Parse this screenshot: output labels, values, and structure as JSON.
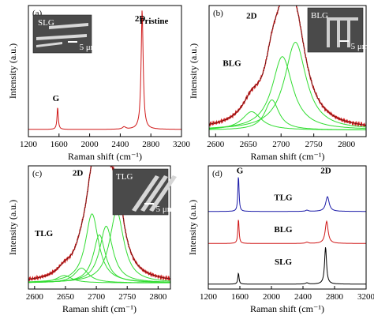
{
  "panels": [
    {
      "id": "a",
      "letter": "(a)",
      "xlabel": "Raman shift (cm⁻¹)",
      "ylabel": "Intensity (a.u.)",
      "inset": {
        "label": "SLG",
        "scale": "5 μm"
      },
      "annotations": [
        {
          "text": "G",
          "x": 1560,
          "y": 0.27
        },
        {
          "text": "2D",
          "x": 2660,
          "y": 0.88
        },
        {
          "text": "Pristine",
          "x": 2840,
          "y": 0.86
        }
      ]
    },
    {
      "id": "b",
      "letter": "(b)",
      "xlabel": "Raman shift (cm⁻¹)",
      "ylabel": "Intensity (a.u.)",
      "inset": {
        "label": "BLG",
        "scale": "5 μm"
      },
      "annotations": [
        {
          "text": "2D",
          "x": 2655,
          "y": 0.9
        },
        {
          "text": "BLG",
          "x": 2625,
          "y": 0.54
        }
      ]
    },
    {
      "id": "c",
      "letter": "(c)",
      "xlabel": "Raman shift (cm⁻¹)",
      "ylabel": "Intensity (a.u.)",
      "inset": {
        "label": "TLG",
        "scale": "5 μm"
      },
      "annotations": [
        {
          "text": "2D",
          "x": 2670,
          "y": 0.92
        },
        {
          "text": "TLG",
          "x": 2615,
          "y": 0.43
        }
      ]
    },
    {
      "id": "d",
      "letter": "(d)",
      "xlabel": "Raman shift (cm⁻¹)",
      "ylabel": "Intensity (a.u.)",
      "annotations": [
        {
          "text": "G",
          "x": 1600,
          "y": 0.94
        },
        {
          "text": "2D",
          "x": 2690,
          "y": 0.94
        },
        {
          "text": "TLG",
          "x": 2150,
          "y": 0.72,
          "color": "#1a1aa8"
        },
        {
          "text": "BLG",
          "x": 2150,
          "y": 0.46,
          "color": "#d01818"
        },
        {
          "text": "SLG",
          "x": 2150,
          "y": 0.2,
          "color": "#000000"
        }
      ]
    }
  ],
  "chart_data": [
    {
      "type": "line",
      "panel": "a",
      "xlabel": "Raman shift (cm⁻¹)",
      "ylabel": "Intensity (a.u.)",
      "xlim": [
        1200,
        3200
      ],
      "xticks": [
        1200,
        1600,
        2000,
        2400,
        2800,
        3200
      ],
      "ylim": [
        0,
        1
      ],
      "series": [
        {
          "color": "#d01818",
          "baseline": 0.055,
          "peaks": [
            [
              1582,
              0.17,
              10
            ],
            [
              2450,
              0.018,
              25
            ],
            [
              2686,
              0.91,
              16
            ]
          ]
        }
      ]
    },
    {
      "type": "line",
      "panel": "b",
      "xlabel": "Raman shift (cm⁻¹)",
      "ylabel": "Intensity (a.u.)",
      "xlim": [
        2590,
        2830
      ],
      "xticks": [
        2600,
        2650,
        2700,
        2750,
        2800
      ],
      "ylim": [
        0,
        1
      ],
      "series": [
        {
          "color": "#d01818",
          "kind": "sum",
          "baseline": 0.05
        },
        {
          "color": "#33dd33",
          "kind": "component",
          "baseline": 0.05,
          "peaks": [
            [
              2655,
              0.14,
              18
            ]
          ]
        },
        {
          "color": "#33dd33",
          "kind": "component",
          "baseline": 0.05,
          "peaks": [
            [
              2686,
              0.23,
              13
            ]
          ]
        },
        {
          "color": "#33dd33",
          "kind": "component",
          "baseline": 0.05,
          "peaks": [
            [
              2702,
              0.56,
              19
            ]
          ]
        },
        {
          "color": "#33dd33",
          "kind": "component",
          "baseline": 0.05,
          "peaks": [
            [
              2722,
              0.67,
              20
            ]
          ]
        }
      ]
    },
    {
      "type": "line",
      "panel": "c",
      "xlabel": "Raman shift (cm⁻¹)",
      "ylabel": "Intensity (a.u.)",
      "xlim": [
        2590,
        2820
      ],
      "xticks": [
        2600,
        2650,
        2700,
        2750,
        2800
      ],
      "ylim": [
        0,
        1
      ],
      "series": [
        {
          "color": "#d01818",
          "kind": "sum",
          "baseline": 0.05
        },
        {
          "color": "#33dd33",
          "kind": "component",
          "baseline": 0.05,
          "peaks": [
            [
              2648,
              0.06,
              15
            ]
          ]
        },
        {
          "color": "#33dd33",
          "kind": "component",
          "baseline": 0.05,
          "peaks": [
            [
              2676,
              0.12,
              14
            ]
          ]
        },
        {
          "color": "#33dd33",
          "kind": "component",
          "baseline": 0.05,
          "peaks": [
            [
              2693,
              0.56,
              13
            ]
          ]
        },
        {
          "color": "#33dd33",
          "kind": "component",
          "baseline": 0.05,
          "peaks": [
            [
              2705,
              0.39,
              12
            ]
          ]
        },
        {
          "color": "#33dd33",
          "kind": "component",
          "baseline": 0.05,
          "peaks": [
            [
              2716,
              0.46,
              13
            ]
          ]
        },
        {
          "color": "#33dd33",
          "kind": "component",
          "baseline": 0.05,
          "peaks": [
            [
              2733,
              0.58,
              14
            ]
          ]
        }
      ]
    },
    {
      "type": "line",
      "panel": "d",
      "xlabel": "Raman shift (cm⁻¹)",
      "ylabel": "Intensity (a.u.)",
      "xlim": [
        1200,
        3200
      ],
      "xticks": [
        1200,
        1600,
        2000,
        2400,
        2800,
        3200
      ],
      "ylim": [
        0,
        1
      ],
      "series": [
        {
          "name": "SLG",
          "color": "#000000",
          "baseline": 0.04,
          "peaks": [
            [
              1582,
              0.09,
              9
            ],
            [
              2450,
              0.01,
              20
            ],
            [
              2686,
              0.3,
              15
            ]
          ]
        },
        {
          "name": "BLG",
          "color": "#d01818",
          "baseline": 0.37,
          "peaks": [
            [
              1582,
              0.2,
              9
            ],
            [
              2450,
              0.01,
              20
            ],
            [
              2700,
              0.18,
              22
            ]
          ]
        },
        {
          "name": "TLG",
          "color": "#1a1aa8",
          "baseline": 0.63,
          "peaks": [
            [
              1582,
              0.29,
              9
            ],
            [
              2450,
              0.01,
              20
            ],
            [
              2710,
              0.12,
              26
            ]
          ]
        }
      ]
    }
  ]
}
